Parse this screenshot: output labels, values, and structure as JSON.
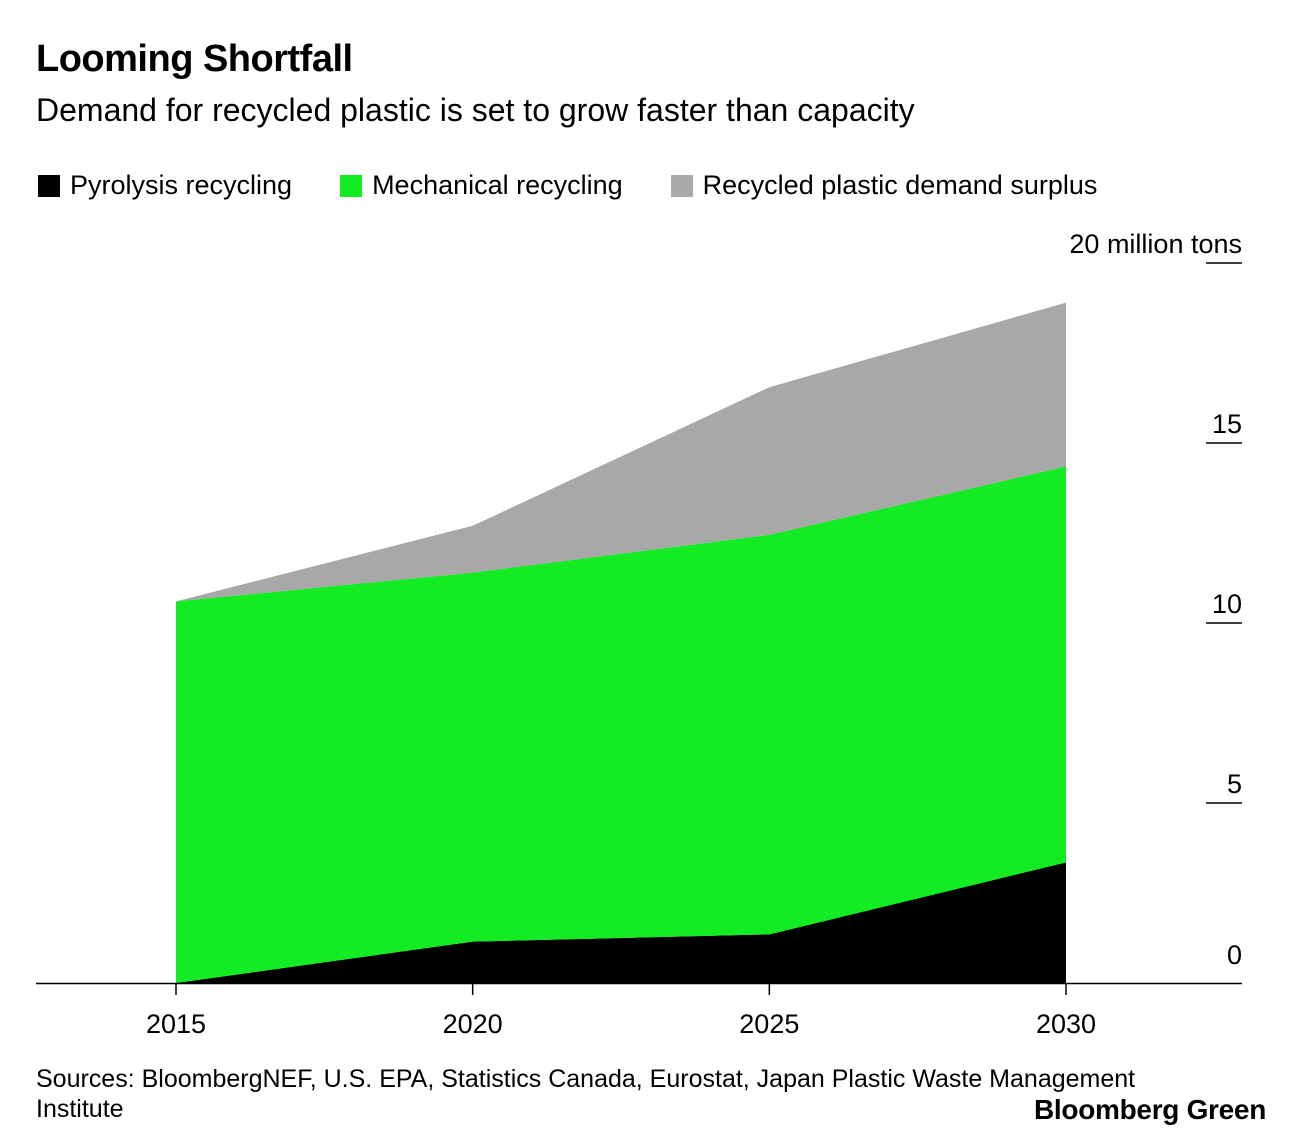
{
  "chart_data": {
    "type": "area",
    "stacked": true,
    "title": "Looming Shortfall",
    "subtitle": "Demand for recycled plastic is set to grow faster than capacity",
    "x": [
      2015,
      2020,
      2025,
      2030
    ],
    "x_tick_labels": [
      "2015",
      "2020",
      "2025",
      "2030"
    ],
    "series": [
      {
        "name": "Pyrolysis recycling",
        "color": "#000000",
        "values": [
          0,
          1.15,
          1.35,
          3.35
        ]
      },
      {
        "name": "Mechanical recycling",
        "color": "#13eb22",
        "values": [
          10.6,
          10.25,
          11.1,
          11.0
        ]
      },
      {
        "name": "Recycled plastic demand surplus",
        "color": "#a8a8a8",
        "values": [
          0,
          1.3,
          4.1,
          4.55
        ]
      }
    ],
    "y_ticks": [
      0,
      5,
      10,
      15,
      20
    ],
    "y_tick_labels": [
      "0",
      "5",
      "10",
      "15",
      "20 million tons"
    ],
    "ylim": [
      0,
      20
    ],
    "y_axis_side": "right",
    "legend_position": "top"
  },
  "source": "Sources: BloombergNEF, U.S. EPA, Statistics Canada, Eurostat, Japan Plastic Waste Management Institute",
  "brand": "Bloomberg Green"
}
